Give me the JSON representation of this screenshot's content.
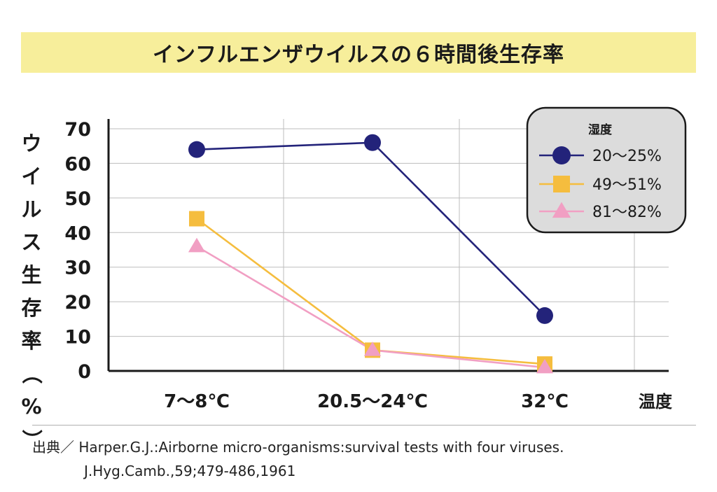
{
  "colors": {
    "title_band": "#f7ee9b",
    "series_20_25": "#23237a",
    "series_49_51": "#f5bd3e",
    "series_81_82": "#f19fc3",
    "legend_bg": "#dcdcdc",
    "grid": "#bdbdbd"
  },
  "chart_data": {
    "type": "line",
    "title": "インフルエンザウイルスの６時間後生存率",
    "ylabel": "ウイルス生存率（%）",
    "xlabel": "温度",
    "categories": [
      "7〜8℃",
      "20.5〜24℃",
      "32℃"
    ],
    "ylim": [
      0,
      70
    ],
    "yticks": [
      0,
      10,
      20,
      30,
      40,
      50,
      60,
      70
    ],
    "grid": true,
    "legend": {
      "title": "湿度",
      "placement": "top-right"
    },
    "series": [
      {
        "name": "20〜25%",
        "marker": "circle",
        "color": "#23237a",
        "values": [
          64,
          66,
          16
        ]
      },
      {
        "name": "49〜51%",
        "marker": "square",
        "color": "#f5bd3e",
        "values": [
          44,
          6,
          2
        ]
      },
      {
        "name": "81〜82%",
        "marker": "triangle",
        "color": "#f19fc3",
        "values": [
          36,
          6,
          1
        ]
      }
    ]
  },
  "source": {
    "label": "出典／",
    "line1": "Harper.G.J.:Airborne micro-organisms:survival tests with four viruses.",
    "line2": "J.Hyg.Camb.,59;479-486,1961"
  }
}
